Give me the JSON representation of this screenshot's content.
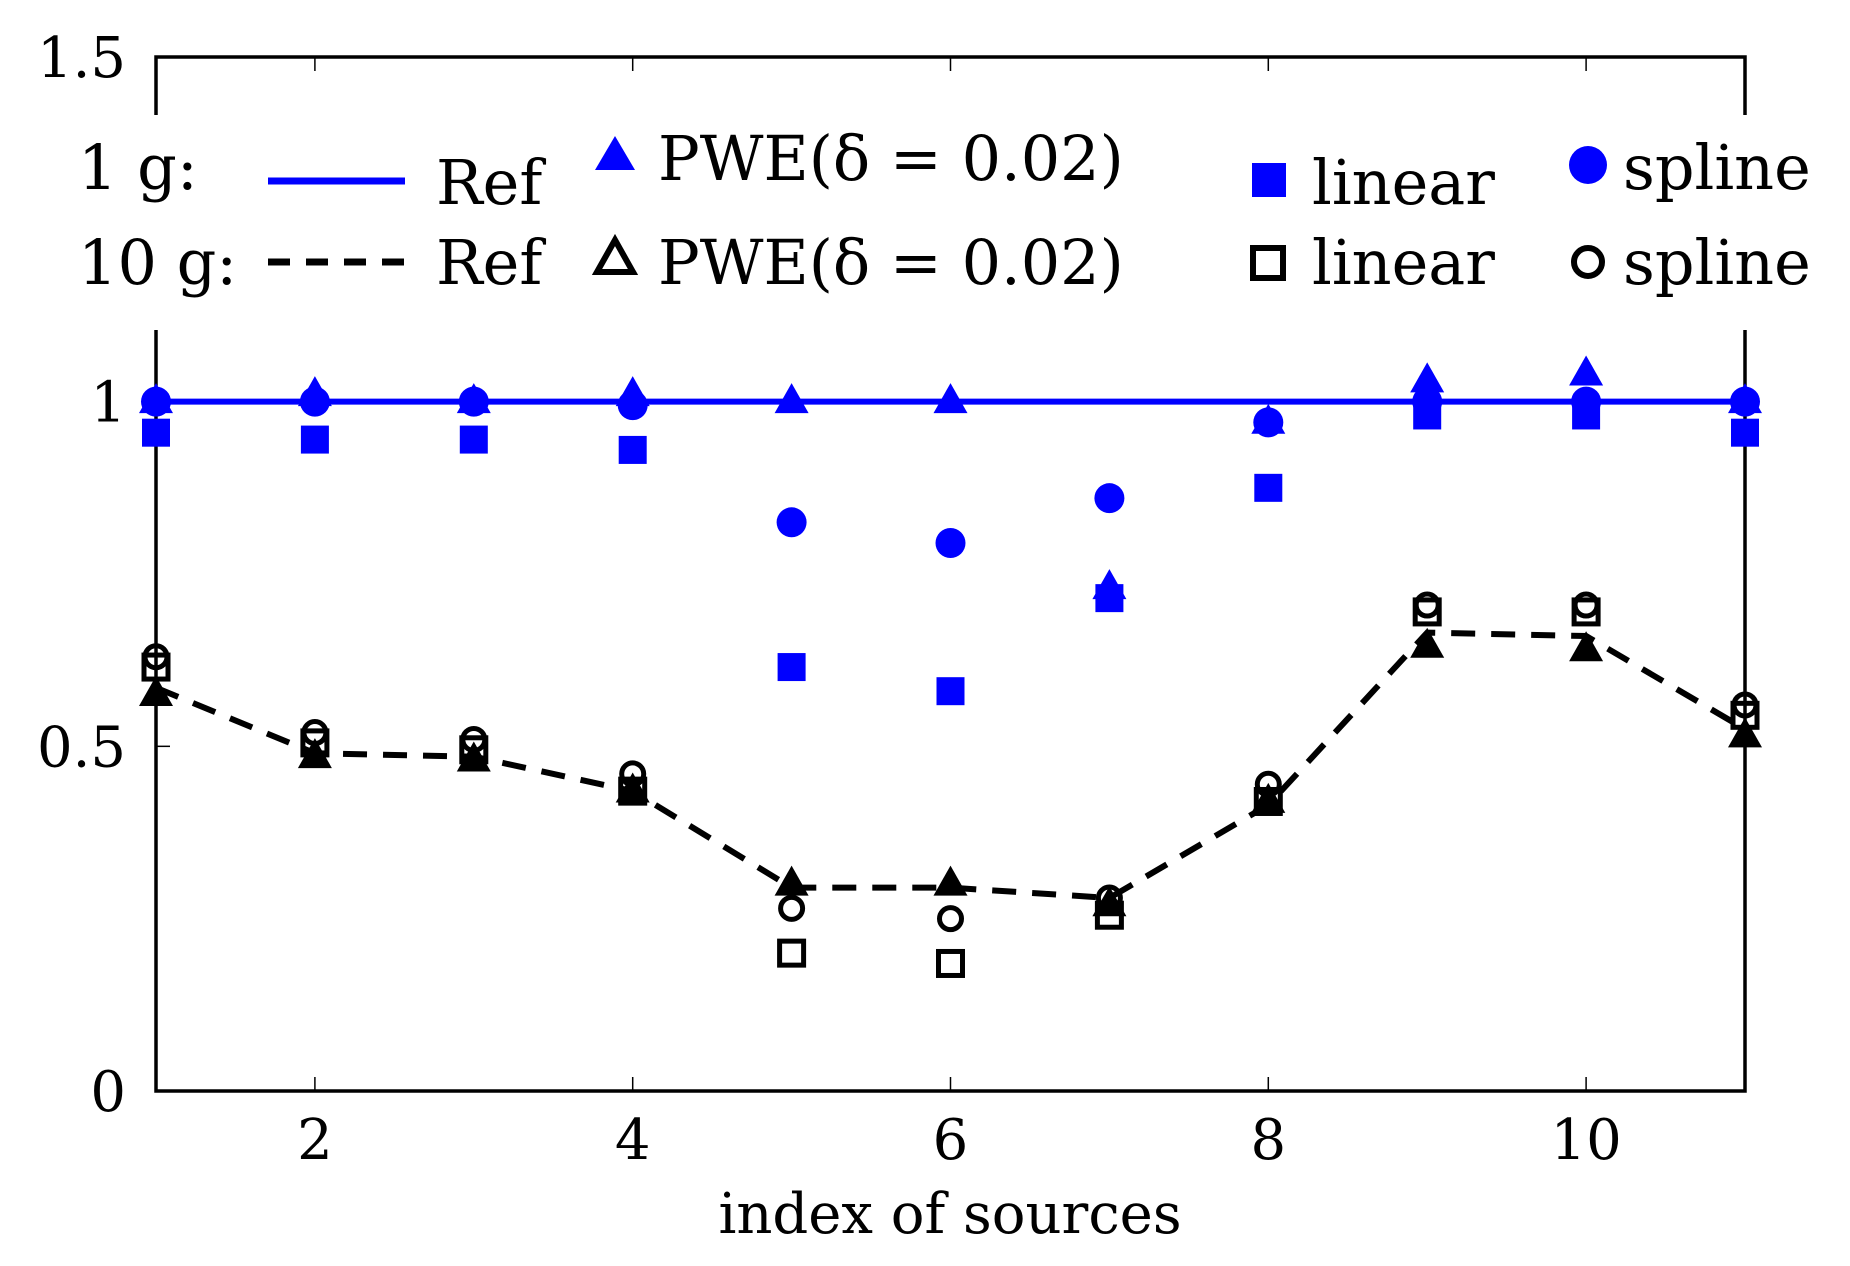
{
  "chart_data": {
    "type": "scatter",
    "xlabel": "index of sources",
    "ylabel": "",
    "xlim": [
      1,
      11
    ],
    "ylim": [
      0,
      1.5
    ],
    "xticks": [
      2,
      4,
      6,
      8,
      10
    ],
    "xtick_labels": [
      "2",
      "4",
      "6",
      "8",
      "10"
    ],
    "yticks": [
      0,
      0.5,
      1,
      1.5
    ],
    "ytick_labels": [
      "0",
      "0.5",
      "1",
      "1.5"
    ],
    "grid": false,
    "legend_placement": "top",
    "legend": {
      "rows": [
        {
          "group": "1 g:",
          "entries": [
            "Ref",
            "PWE(δ = 0.02)",
            "linear",
            "spline"
          ]
        },
        {
          "group": "10 g:",
          "entries": [
            "Ref",
            "PWE(δ = 0.02)",
            "linear",
            "spline"
          ]
        }
      ]
    },
    "x": [
      1,
      2,
      3,
      4,
      5,
      6,
      7,
      8,
      9,
      10,
      11
    ],
    "series": [
      {
        "name": "Ref",
        "group": "1 g",
        "style": "line-solid",
        "color": "#0000ff",
        "values": [
          1,
          1,
          1,
          1,
          1,
          1,
          1,
          1,
          1,
          1,
          1
        ]
      },
      {
        "name": "PWE(δ = 0.02)",
        "group": "1 g",
        "style": "triangle-filled",
        "color": "#0000ff",
        "values": [
          1.0,
          1.01,
          1.0,
          1.01,
          1.0,
          1.0,
          0.73,
          0.97,
          1.03,
          1.04,
          1.0
        ]
      },
      {
        "name": "linear",
        "group": "1 g",
        "style": "square-filled",
        "color": "#0000ff",
        "values": [
          0.955,
          0.945,
          0.945,
          0.93,
          0.615,
          0.58,
          0.715,
          0.875,
          0.98,
          0.98,
          0.955
        ]
      },
      {
        "name": "spline",
        "group": "1 g",
        "style": "circle-filled",
        "color": "#0000ff",
        "values": [
          1.0,
          1.0,
          1.0,
          0.995,
          0.825,
          0.795,
          0.86,
          0.97,
          1.0,
          1.0,
          1.0
        ]
      },
      {
        "name": "Ref",
        "group": "10 g",
        "style": "line-dashed",
        "color": "#000000",
        "values": [
          0.585,
          0.49,
          0.485,
          0.435,
          0.295,
          0.295,
          0.28,
          0.415,
          0.665,
          0.66,
          0.525
        ]
      },
      {
        "name": "PWE(δ = 0.02)",
        "group": "10 g",
        "style": "triangle-filled",
        "color": "#000000",
        "values": [
          0.575,
          0.485,
          0.48,
          0.435,
          0.3,
          0.3,
          0.27,
          0.42,
          0.645,
          0.64,
          0.515
        ]
      },
      {
        "name": "linear",
        "group": "10 g",
        "style": "square-open",
        "color": "#000000",
        "values": [
          0.615,
          0.505,
          0.495,
          0.435,
          0.2,
          0.185,
          0.255,
          0.42,
          0.695,
          0.695,
          0.545
        ]
      },
      {
        "name": "spline",
        "group": "10 g",
        "style": "circle-open",
        "color": "#000000",
        "values": [
          0.63,
          0.52,
          0.51,
          0.46,
          0.265,
          0.25,
          0.28,
          0.445,
          0.705,
          0.705,
          0.56
        ]
      }
    ]
  }
}
